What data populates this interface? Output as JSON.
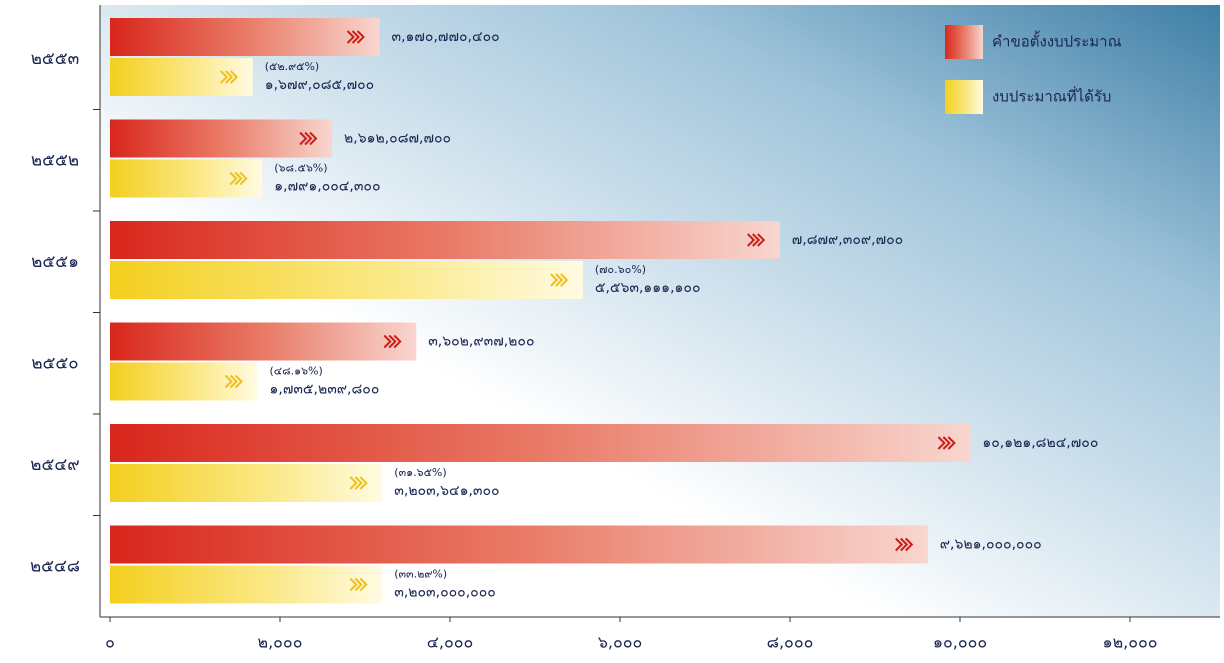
{
  "chart_data": {
    "type": "hbar",
    "categories": [
      "๒๕๕๓",
      "๒๕๕๒",
      "๒๕๕๑",
      "๒๕๕๐",
      "๒๕๔๙",
      "๒๕๔๘"
    ],
    "series": [
      {
        "name": "คำขอตั้งงบประมาณ",
        "color": "#d9261c",
        "values": [
          3170.7704,
          2612.0877,
          7879.3097,
          3602.9372,
          10121.8247,
          9621
        ],
        "value_labels": [
          "๓,๑๗๐,๗๗๐,๔๐๐",
          "๒,๖๑๒,๐๘๗,๗๐๐",
          "๗,๘๗๙,๓๐๙,๗๐๐",
          "๓,๖๐๒,๙๓๗,๒๐๐",
          "๑๐,๑๒๑,๘๒๔,๗๐๐",
          "๙,๖๒๑,๐๐๐,๐๐๐"
        ]
      },
      {
        "name": "งบประมาณที่ได้รับ",
        "color": "#f4cf1e",
        "values": [
          1679.0857,
          1791.0043,
          5563.1111,
          1735.2398,
          3203.6413,
          3203
        ],
        "value_labels": [
          "๑,๖๗๙,๐๘๕,๗๐๐",
          "๑,๗๙๑,๐๐๔,๓๐๐",
          "๕,๕๖๓,๑๑๑,๑๐๐",
          "๑,๗๓๕,๒๓๙,๘๐๐",
          "๓,๒๐๓,๖๔๑,๓๐๐",
          "๓,๒๐๓,๐๐๐,๐๐๐"
        ],
        "percent_labels": [
          "(๕๒.๙๕%)",
          "(๖๘.๕๖%)",
          "(๗๐.๖๐%)",
          "(๔๘.๑๖%)",
          "(๓๑.๖๕%)",
          "(๓๓.๒๙%)"
        ]
      }
    ],
    "xlim": [
      0,
      13000
    ],
    "xticks": [
      {
        "value": 0,
        "label": "๐"
      },
      {
        "value": 2000,
        "label": "๒,๐๐๐"
      },
      {
        "value": 4000,
        "label": "๔,๐๐๐"
      },
      {
        "value": 6000,
        "label": "๖,๐๐๐"
      },
      {
        "value": 8000,
        "label": "๘,๐๐๐"
      },
      {
        "value": 10000,
        "label": "๑๐,๐๐๐"
      },
      {
        "value": 12000,
        "label": "๑๒,๐๐๐"
      }
    ],
    "legend": "top-right"
  }
}
